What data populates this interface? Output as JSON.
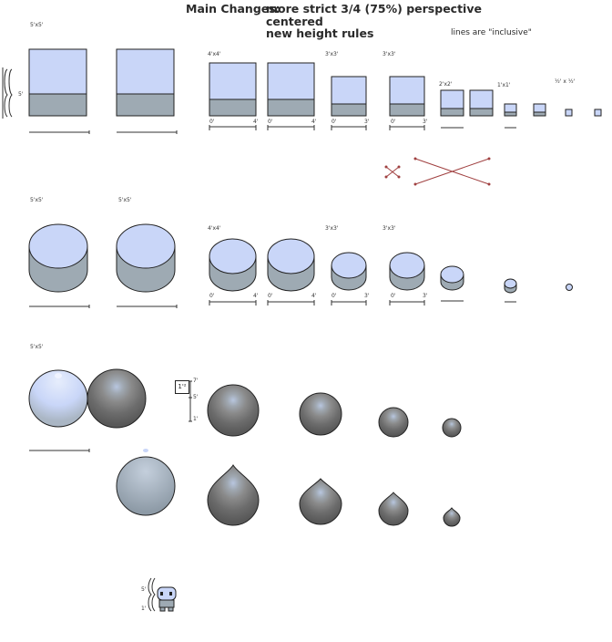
{
  "header": {
    "prefix": "Main Changes:",
    "line1": "more strict 3/4 (75%) perspective",
    "line2": "centered",
    "line3": "new height rules",
    "note": "lines are \"inclusive\""
  },
  "labels": {
    "five": "5'x5'",
    "four": "4'x4'",
    "three": "3'x3'",
    "two": "2'x2'",
    "one": "1'x1'",
    "half": "½' x ½'",
    "five_ft": "5'",
    "one_ft": "1'",
    "zero": "0'",
    "three_ft": "3'",
    "four_ft": "4'",
    "seven_ft": "7'",
    "box_label": "1'²"
  },
  "colors": {
    "light_face": "#c9d6f8",
    "side_face": "#9eaab3",
    "outline": "#222222",
    "sphere_dark": "#6a6a6a",
    "sphere_mid": "#858585",
    "sphere_hi": "#a6b4cc",
    "guide_red": "#a04040"
  }
}
